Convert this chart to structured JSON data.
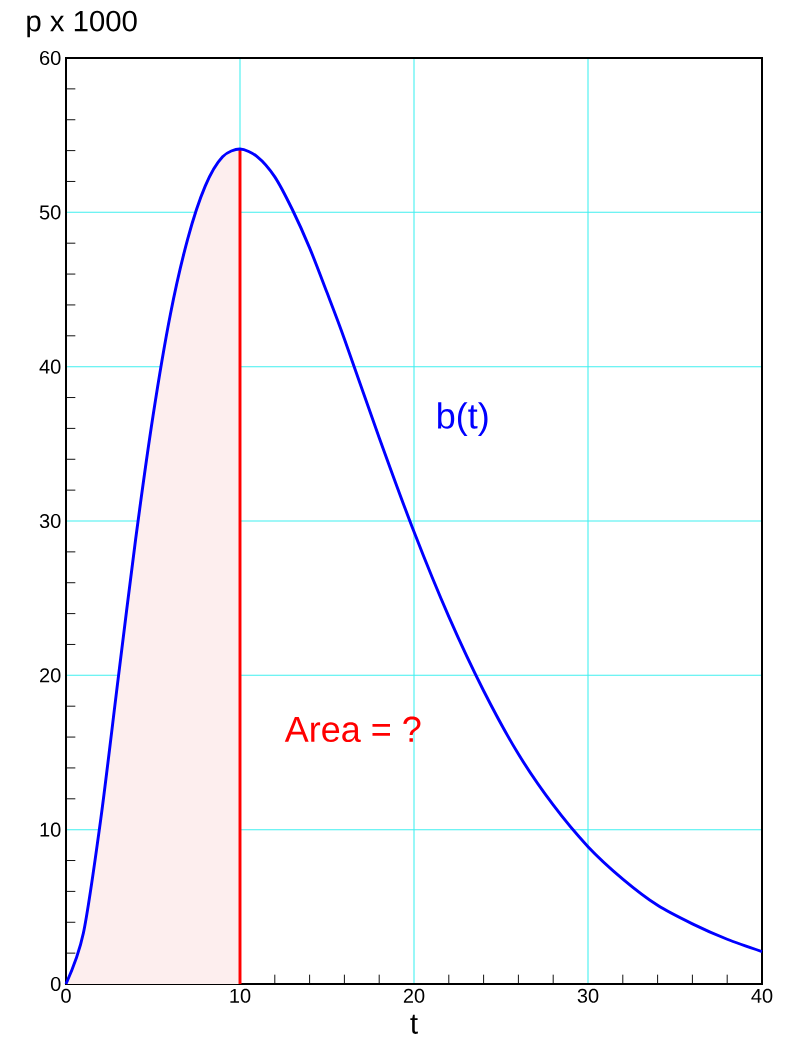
{
  "chart_data": {
    "type": "line",
    "xlabel": "t",
    "ylabel": "p x 1000",
    "xlim": [
      0,
      40
    ],
    "ylim": [
      0,
      60
    ],
    "xticks": [
      0,
      10,
      20,
      30,
      40
    ],
    "yticks": [
      0,
      10,
      20,
      30,
      40,
      50,
      60
    ],
    "grid": true,
    "annotations": [
      "Area = ?"
    ],
    "series": [
      {
        "type": "area",
        "color": "#fdeeee",
        "x": [
          0,
          1,
          2,
          3,
          4,
          5,
          6,
          7,
          8,
          9,
          10
        ],
        "values": [
          0,
          3.3,
          10.7,
          19.8,
          28.8,
          36.8,
          43.4,
          48.3,
          51.7,
          53.6,
          54.1
        ]
      },
      {
        "type": "line",
        "color": "#ff0000",
        "x": [
          10,
          10
        ],
        "values": [
          0,
          54.1
        ]
      },
      {
        "type": "line",
        "name": "b(t)",
        "color": "#0000ff",
        "x": [
          0,
          1,
          2,
          3,
          4,
          5,
          6,
          7,
          8,
          9,
          10,
          11,
          12,
          13,
          14,
          15,
          16,
          18,
          20,
          22,
          24,
          26,
          28,
          30,
          32,
          34,
          36,
          38,
          40
        ],
        "values": [
          0,
          3.3,
          10.7,
          19.8,
          28.8,
          36.8,
          43.4,
          48.3,
          51.7,
          53.6,
          54.1,
          53.6,
          52.3,
          50.2,
          47.7,
          44.8,
          41.8,
          35.4,
          29.3,
          23.8,
          19.0,
          14.9,
          11.6,
          8.9,
          6.8,
          5.1,
          3.9,
          2.9,
          2.1
        ]
      }
    ]
  }
}
